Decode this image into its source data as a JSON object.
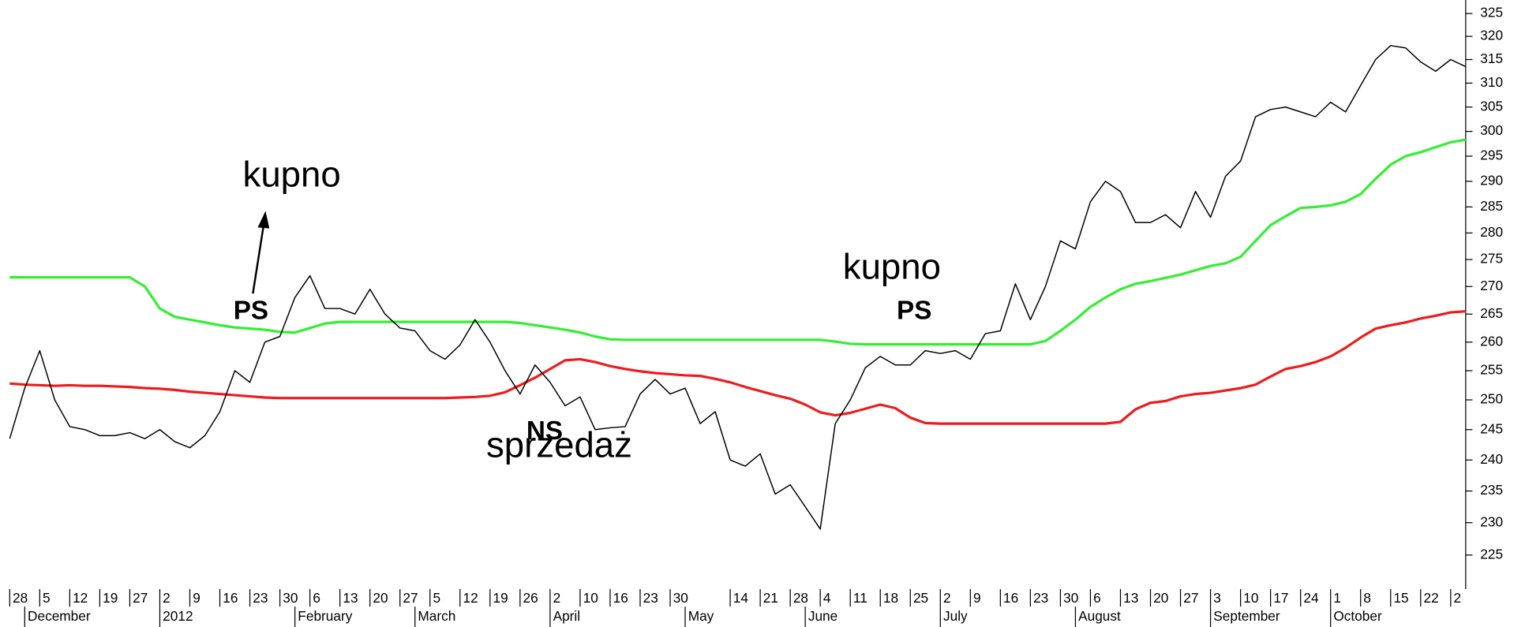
{
  "chart_data": {
    "type": "line",
    "log_scale": true,
    "ylim": [
      220,
      328
    ],
    "yticks": [
      225,
      230,
      235,
      240,
      245,
      250,
      255,
      260,
      265,
      270,
      275,
      280,
      285,
      290,
      295,
      300,
      305,
      310,
      315,
      320,
      325
    ],
    "categories": [
      "28",
      null,
      "5",
      null,
      "12",
      null,
      "19",
      null,
      "27",
      null,
      "2",
      null,
      "9",
      null,
      "16",
      null,
      "23",
      null,
      "30",
      null,
      "6",
      null,
      "13",
      null,
      "20",
      null,
      "27",
      null,
      "5",
      null,
      "12",
      null,
      "19",
      null,
      "26",
      null,
      "2",
      null,
      "10",
      null,
      "16",
      null,
      "23",
      null,
      "30",
      null,
      null,
      null,
      "14",
      null,
      "21",
      null,
      "28",
      null,
      "4",
      null,
      "11",
      null,
      "18",
      null,
      "25",
      null,
      "2",
      null,
      "9",
      null,
      "16",
      null,
      "23",
      null,
      "30",
      null,
      "6",
      null,
      "13",
      null,
      "20",
      null,
      "27",
      null,
      "3",
      null,
      "10",
      null,
      "17",
      null,
      "24",
      null,
      "1",
      null,
      "8",
      null,
      "15",
      null,
      "22",
      null,
      "2",
      null
    ],
    "month_labels": [
      null,
      "December",
      null,
      null,
      null,
      null,
      null,
      null,
      null,
      null,
      "2012",
      null,
      null,
      null,
      null,
      null,
      null,
      null,
      null,
      "February",
      null,
      null,
      null,
      null,
      null,
      null,
      null,
      "March",
      null,
      null,
      null,
      null,
      null,
      null,
      null,
      null,
      "April",
      null,
      null,
      null,
      null,
      null,
      null,
      null,
      null,
      "May",
      null,
      null,
      null,
      null,
      null,
      null,
      null,
      "June",
      null,
      null,
      null,
      null,
      null,
      null,
      null,
      null,
      "July",
      null,
      null,
      null,
      null,
      null,
      null,
      null,
      null,
      "August",
      null,
      null,
      null,
      null,
      null,
      null,
      null,
      null,
      "September",
      null,
      null,
      null,
      null,
      null,
      null,
      null,
      "October",
      null,
      null,
      null,
      null,
      null,
      null,
      null,
      null,
      null
    ],
    "series": [
      {
        "color": "#000000",
        "values": [
          243.5,
          252,
          258.5,
          250,
          245.5,
          245,
          244,
          244,
          244.5,
          243.5,
          245,
          243,
          242,
          244,
          248,
          255,
          253,
          260,
          261,
          268,
          272,
          266,
          266,
          265,
          269.5,
          265,
          262.5,
          262,
          258.5,
          257,
          259.5,
          264,
          260,
          255,
          251,
          256,
          253,
          249,
          250.5,
          245,
          245.3,
          245.5,
          251,
          253.5,
          251,
          252,
          246,
          248,
          240,
          239,
          241,
          234.5,
          236,
          232.5,
          229,
          246,
          250,
          255.5,
          257.5,
          256,
          256,
          258.5,
          258,
          258.5,
          257,
          261.5,
          262,
          270.5,
          264,
          270,
          278.5,
          277,
          286,
          290,
          288,
          282,
          282,
          283.5,
          281,
          288,
          283,
          291,
          294,
          303,
          304.5,
          305,
          304,
          303,
          306,
          304,
          309.5,
          315,
          318,
          317.5,
          314.5,
          312.5,
          315,
          313.5
        ]
      },
      {
        "color": "#33ee33",
        "values": [
          271.7,
          271.7,
          271.7,
          271.7,
          271.7,
          271.7,
          271.7,
          271.7,
          271.7,
          270,
          266,
          264.5,
          264,
          263.5,
          263,
          262.6,
          262.4,
          262.2,
          261.8,
          261.7,
          262.5,
          263.3,
          263.6,
          263.6,
          263.6,
          263.6,
          263.6,
          263.6,
          263.6,
          263.6,
          263.6,
          263.6,
          263.6,
          263.6,
          263.4,
          263,
          262.6,
          262.2,
          261.7,
          261,
          260.5,
          260.4,
          260.4,
          260.4,
          260.4,
          260.4,
          260.4,
          260.4,
          260.4,
          260.4,
          260.4,
          260.4,
          260.4,
          260.4,
          260.4,
          260.1,
          259.7,
          259.6,
          259.6,
          259.6,
          259.6,
          259.6,
          259.6,
          259.6,
          259.6,
          259.6,
          259.6,
          259.6,
          259.6,
          260.2,
          262,
          264,
          266.3,
          268,
          269.5,
          270.5,
          271,
          271.6,
          272.2,
          273,
          273.8,
          274.3,
          275.5,
          278.5,
          281.5,
          283.2,
          284.8,
          285,
          285.3,
          286,
          287.5,
          290.5,
          293.3,
          295,
          295.8,
          296.8,
          297.8,
          298.3
        ]
      },
      {
        "color": "#ee1c1c",
        "values": [
          252.8,
          252.6,
          252.5,
          252.4,
          252.5,
          252.4,
          252.4,
          252.3,
          252.2,
          252,
          251.9,
          251.7,
          251.4,
          251.2,
          251,
          250.8,
          250.6,
          250.4,
          250.3,
          250.3,
          250.3,
          250.3,
          250.3,
          250.3,
          250.3,
          250.3,
          250.3,
          250.3,
          250.3,
          250.3,
          250.4,
          250.5,
          250.7,
          251.3,
          252.5,
          253.8,
          255.3,
          256.8,
          257,
          256.5,
          255.8,
          255.3,
          254.9,
          254.6,
          254.4,
          254.2,
          254.1,
          253.6,
          253,
          252.2,
          251.5,
          250.8,
          250.2,
          249.2,
          247.9,
          247.4,
          247.8,
          248.5,
          249.2,
          248.6,
          247,
          246.1,
          246,
          246,
          246,
          246,
          246,
          246,
          246,
          246,
          246,
          246,
          246,
          246,
          246.3,
          248.4,
          249.5,
          249.8,
          250.6,
          251,
          251.2,
          251.6,
          252,
          252.6,
          254,
          255.3,
          255.8,
          256.5,
          257.5,
          259,
          260.8,
          262.4,
          263,
          263.5,
          264.2,
          264.7,
          265.3,
          265.5
        ]
      }
    ],
    "annotations": [
      "kupno",
      "PS",
      "NS",
      "sprzedaż",
      "kupno",
      "PS"
    ]
  }
}
